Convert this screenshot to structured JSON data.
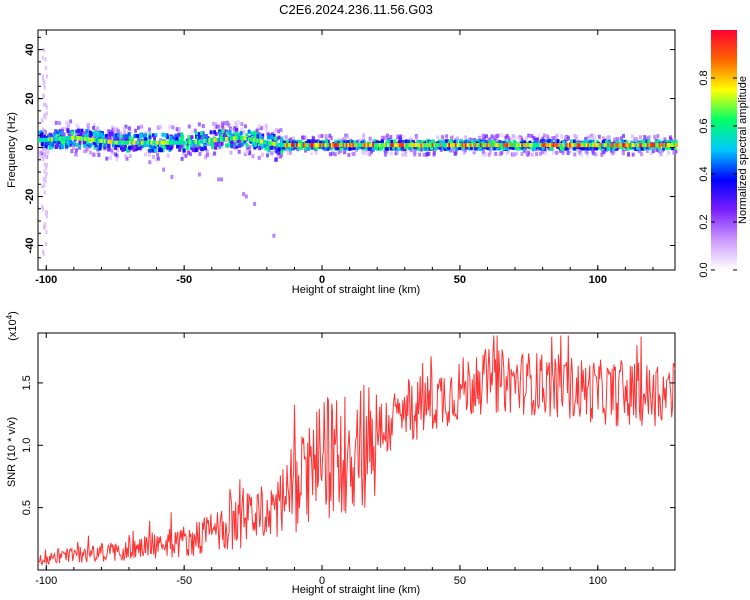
{
  "title": "C2E6.2024.236.11.56.G03",
  "chart_data": [
    {
      "type": "heatmap",
      "xlabel": "Height of straight line (km)",
      "ylabel": "Frequency (Hz)",
      "xlim": [
        -103,
        128
      ],
      "ylim": [
        -50,
        48
      ],
      "xticks": [
        -100,
        -50,
        0,
        50,
        100
      ],
      "yticks": [
        -40,
        -20,
        0,
        20,
        40
      ],
      "ytick_labels": [
        "-40",
        "-20",
        "0",
        "20",
        "40"
      ],
      "colorbar": {
        "label": "Normalized spectral amplitude",
        "range": [
          0.0,
          1.0
        ],
        "ticks": [
          "0.0",
          "0.2",
          "0.4",
          "0.6",
          "0.8"
        ],
        "colors": [
          "#ffffff",
          "#cc99ff",
          "#7a1fff",
          "#0000ff",
          "#00c8ff",
          "#00ff66",
          "#ffff00",
          "#ff6600",
          "#ff0033"
        ]
      },
      "description_track": {
        "x": [
          -103,
          -90,
          -75,
          -60,
          -50,
          -40,
          -30,
          -20,
          -16,
          0,
          50,
          100,
          128
        ],
        "center_freq": [
          3,
          4,
          2,
          2,
          2,
          3,
          4,
          2,
          1,
          1,
          1,
          1,
          1
        ]
      }
    },
    {
      "type": "line",
      "xlabel": "Height of straight line (km)",
      "ylabel": "SNR (10 * v/v)",
      "yexponent_label": "(x10",
      "yexponent": "4",
      "xlim": [
        -103,
        128
      ],
      "ylim": [
        0,
        19000
      ],
      "xticks": [
        -100,
        -50,
        0,
        50,
        100
      ],
      "yticks": [
        5000,
        10000,
        15000
      ],
      "ytick_labels": [
        "0.5",
        "1.0",
        "1.5"
      ],
      "color": "#ff3333",
      "trend": {
        "x": [
          -103,
          -90,
          -75,
          -60,
          -50,
          -40,
          -30,
          -20,
          -15,
          -10,
          0,
          10,
          20,
          30,
          40,
          50,
          60,
          75,
          90,
          100,
          110,
          128
        ],
        "y": [
          800,
          1200,
          1500,
          2000,
          2300,
          3000,
          3700,
          4500,
          5500,
          6500,
          8800,
          9500,
          11000,
          12500,
          13500,
          14500,
          15200,
          15000,
          14600,
          14300,
          14000,
          14200
        ]
      }
    }
  ]
}
